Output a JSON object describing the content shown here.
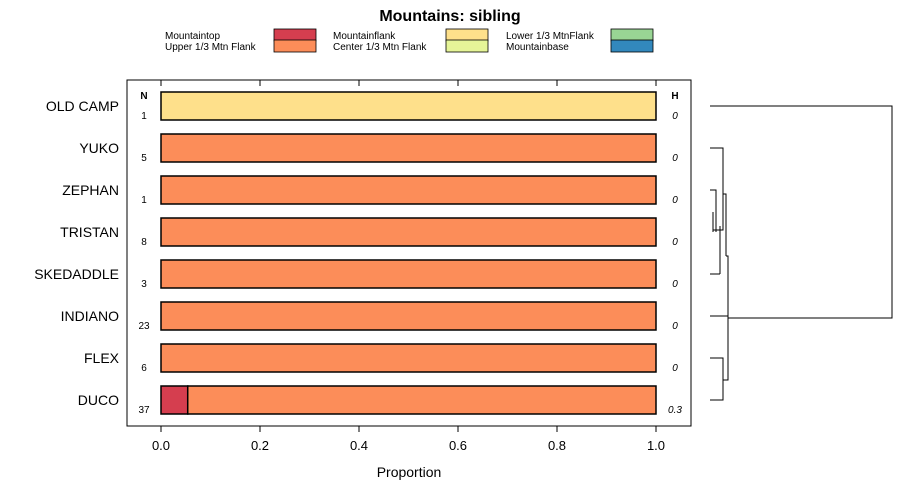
{
  "chart_data": {
    "type": "bar",
    "orientation": "horizontal",
    "stacked": true,
    "title": "Mountains: sibling",
    "xlabel": "Proportion",
    "ylabel": "",
    "xlim": [
      0,
      1
    ],
    "xticks": [
      "0.0",
      "0.2",
      "0.4",
      "0.6",
      "0.8",
      "1.0"
    ],
    "legend_position": "top",
    "n_header": "N",
    "h_header": "H",
    "segments": [
      {
        "name": "Mountaintop",
        "color": "#d53e4f"
      },
      {
        "name": "Upper 1/3 Mtn Flank",
        "color": "#fc8d59"
      },
      {
        "name": "Mountainflank",
        "color": "#fee08b"
      },
      {
        "name": "Center 1/3 Mtn Flank",
        "color": "#e6f598"
      },
      {
        "name": "Lower 1/3 MtnFlank",
        "color": "#99d594"
      },
      {
        "name": "Mountainbase",
        "color": "#3288bd"
      }
    ],
    "categories": [
      {
        "label": "OLD CAMP",
        "n": "1",
        "h": "0",
        "values": [
          0,
          0,
          1,
          0,
          0,
          0
        ]
      },
      {
        "label": "YUKO",
        "n": "5",
        "h": "0",
        "values": [
          0,
          1,
          0,
          0,
          0,
          0
        ]
      },
      {
        "label": "ZEPHAN",
        "n": "1",
        "h": "0",
        "values": [
          0,
          1,
          0,
          0,
          0,
          0
        ]
      },
      {
        "label": "TRISTAN",
        "n": "8",
        "h": "0",
        "values": [
          0,
          1,
          0,
          0,
          0,
          0
        ]
      },
      {
        "label": "SKEDADDLE",
        "n": "3",
        "h": "0",
        "values": [
          0,
          1,
          0,
          0,
          0,
          0
        ]
      },
      {
        "label": "INDIANO",
        "n": "23",
        "h": "0",
        "values": [
          0,
          1,
          0,
          0,
          0,
          0
        ]
      },
      {
        "label": "FLEX",
        "n": "6",
        "h": "0",
        "values": [
          0,
          1,
          0,
          0,
          0,
          0
        ]
      },
      {
        "label": "DUCO",
        "n": "37",
        "h": "0.3",
        "values": [
          0.054,
          0.946,
          0,
          0,
          0,
          0
        ]
      }
    ],
    "dendrogram": {
      "description": "hierarchical clustering of rows shown at right"
    }
  }
}
